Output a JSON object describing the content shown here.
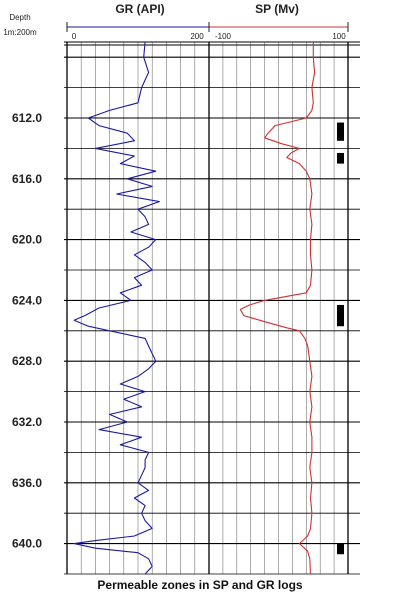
{
  "header": {
    "depth_label": "Depth",
    "scale_label": "1m:200m",
    "gr_title": "GR (API)",
    "sp_title": "SP (Mv)",
    "gr_min_label": "0",
    "gr_max_label": "200",
    "sp_min_label": "-100",
    "sp_max_label": "100"
  },
  "caption": "Permeable zones in SP and GR logs",
  "colors": {
    "gr": "#1a1aa0",
    "sp": "#d03030",
    "grid": "#000000",
    "zone": "#000000"
  },
  "chart_data": {
    "type": "line",
    "title": "Permeable zones in SP and GR logs",
    "y_axis": {
      "label": "Depth",
      "range": [
        607.0,
        642.0
      ],
      "reversed": true,
      "ticks": [
        "612.0",
        "616.0",
        "620.0",
        "624.0",
        "628.0",
        "632.0",
        "636.0",
        "640.0"
      ]
    },
    "gr_axis": {
      "range": [
        0,
        200
      ]
    },
    "sp_axis": {
      "range": [
        -100,
        100
      ]
    },
    "grid": true,
    "series": [
      {
        "name": "GR (API)",
        "depth": [
          607.0,
          608.0,
          609.0,
          610.0,
          611.0,
          611.5,
          612.0,
          612.5,
          613.0,
          613.5,
          614.0,
          614.5,
          615.0,
          615.5,
          616.0,
          616.5,
          617.0,
          617.5,
          618.0,
          618.5,
          619.0,
          619.5,
          620.0,
          620.5,
          621.0,
          621.5,
          622.0,
          622.5,
          623.0,
          623.5,
          624.0,
          624.5,
          625.0,
          625.3,
          625.7,
          626.0,
          626.5,
          627.0,
          627.5,
          628.0,
          628.5,
          629.0,
          629.5,
          630.0,
          630.5,
          631.0,
          631.5,
          632.0,
          632.5,
          633.0,
          633.5,
          634.0,
          634.5,
          635.0,
          635.5,
          636.0,
          636.5,
          637.0,
          637.5,
          638.0,
          638.5,
          639.0,
          639.5,
          639.8,
          640.0,
          640.3,
          640.6,
          641.0,
          641.5,
          642.0
        ],
        "values": [
          110,
          108,
          115,
          105,
          100,
          60,
          30,
          45,
          85,
          95,
          40,
          95,
          75,
          125,
          85,
          120,
          70,
          130,
          100,
          110,
          115,
          90,
          125,
          115,
          95,
          110,
          120,
          95,
          105,
          75,
          90,
          45,
          25,
          10,
          30,
          60,
          110,
          115,
          120,
          125,
          115,
          100,
          75,
          110,
          80,
          105,
          60,
          85,
          45,
          105,
          75,
          115,
          110,
          110,
          105,
          100,
          115,
          95,
          110,
          105,
          110,
          120,
          95,
          40,
          10,
          40,
          100,
          115,
          120,
          110
        ]
      },
      {
        "name": "SP (Mv)",
        "depth": [
          607.0,
          608.0,
          609.0,
          610.0,
          611.0,
          611.5,
          612.0,
          612.5,
          613.0,
          613.3,
          613.7,
          614.0,
          614.3,
          614.6,
          615.0,
          615.5,
          616.0,
          617.0,
          618.0,
          619.0,
          620.0,
          621.0,
          622.0,
          623.0,
          623.5,
          624.0,
          624.3,
          624.6,
          625.0,
          625.4,
          625.8,
          626.0,
          626.5,
          627.0,
          628.0,
          629.0,
          630.0,
          631.0,
          632.0,
          633.0,
          634.0,
          635.0,
          636.0,
          637.0,
          638.0,
          639.0,
          639.5,
          640.0,
          640.5,
          641.0,
          642.0
        ],
        "values": [
          50,
          50,
          52,
          48,
          50,
          48,
          40,
          -5,
          -15,
          -20,
          5,
          30,
          18,
          12,
          30,
          40,
          45,
          48,
          45,
          48,
          46,
          46,
          48,
          46,
          40,
          -20,
          -42,
          -55,
          -50,
          -20,
          12,
          30,
          38,
          42,
          45,
          48,
          45,
          48,
          45,
          48,
          48,
          45,
          48,
          46,
          48,
          46,
          42,
          30,
          42,
          45,
          46
        ]
      }
    ],
    "permeable_zones": [
      {
        "from": 612.3,
        "to": 613.5
      },
      {
        "from": 614.3,
        "to": 615.0
      },
      {
        "from": 624.3,
        "to": 625.7
      },
      {
        "from": 640.0,
        "to": 640.7
      }
    ]
  }
}
